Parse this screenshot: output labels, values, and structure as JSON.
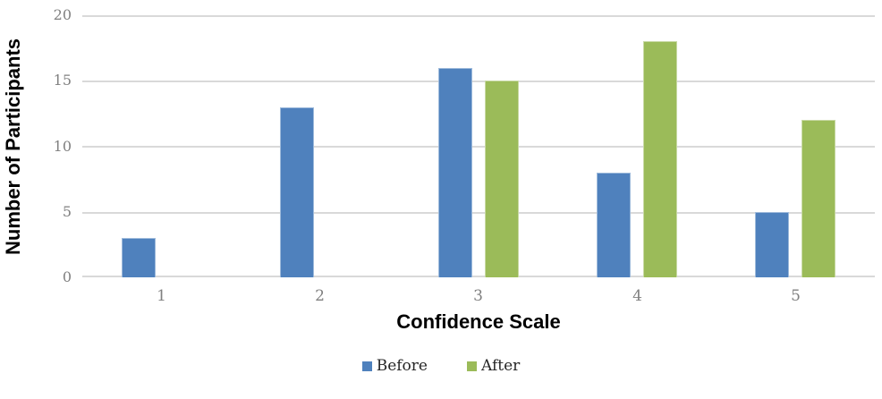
{
  "chart_data": {
    "type": "bar",
    "title": "",
    "xlabel": "Confidence Scale",
    "ylabel": "Number of Participants",
    "categories": [
      "1",
      "2",
      "3",
      "4",
      "5"
    ],
    "series": [
      {
        "name": "Before",
        "color": "#4F81BD",
        "values": [
          3,
          13,
          16,
          8,
          5
        ]
      },
      {
        "name": "After",
        "color": "#9BBB59",
        "values": [
          0,
          0,
          15,
          18,
          12
        ]
      }
    ],
    "ylim": [
      0,
      20
    ],
    "yticks": [
      0,
      5,
      10,
      15,
      20
    ],
    "grid": "horizontal",
    "legend_position": "bottom",
    "colors": {
      "gridline": "#D9D9D9",
      "axis_line": "#D9D9D9",
      "tick_label": "#808080",
      "axis_title": "#000000",
      "legend_text": "#262626"
    }
  }
}
